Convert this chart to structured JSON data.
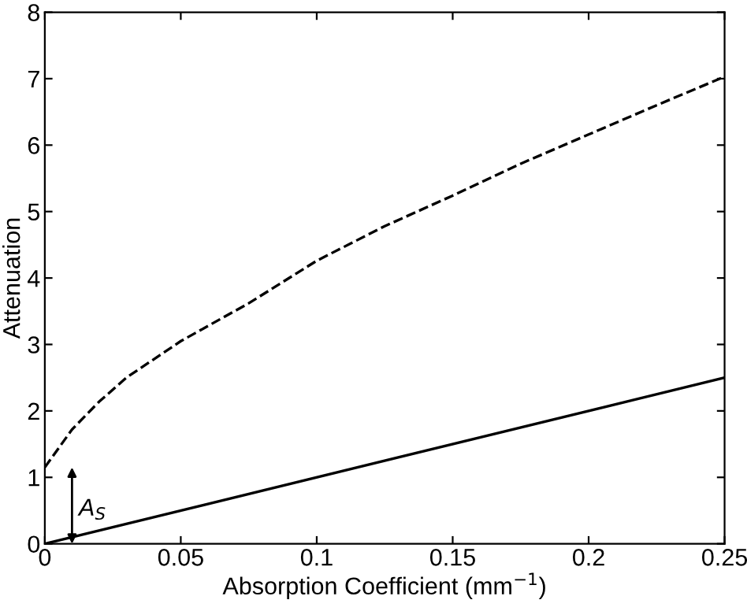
{
  "chart_data": {
    "type": "line",
    "xlabel": "Absorption Coefficient (mm$^{−1}$)",
    "ylabel": "Attenuation",
    "xlim": [
      0,
      0.25
    ],
    "xticks": [
      0,
      0.05,
      0.1,
      0.15,
      0.2,
      0.25
    ],
    "ylim": [
      0,
      8
    ],
    "yticks": [
      0,
      1,
      2,
      3,
      4,
      5,
      6,
      7,
      8
    ],
    "grid": false,
    "legend": false,
    "marker": "none",
    "series": [
      {
        "color": "#000000",
        "line_style": "dashed",
        "x": [
          0,
          0.01,
          0.02,
          0.03,
          0.05,
          0.075,
          0.1,
          0.125,
          0.15,
          0.175,
          0.2,
          0.225,
          0.25
        ],
        "values": [
          1.15,
          1.72,
          2.14,
          2.5,
          3.05,
          3.62,
          4.26,
          4.78,
          5.24,
          5.72,
          6.16,
          6.6,
          7.03
        ]
      },
      {
        "color": "#000000",
        "line_style": "solid",
        "x": [
          0,
          0.25
        ],
        "values": [
          0,
          2.5
        ]
      }
    ],
    "annotations": [
      "A$_{S}$"
    ]
  }
}
